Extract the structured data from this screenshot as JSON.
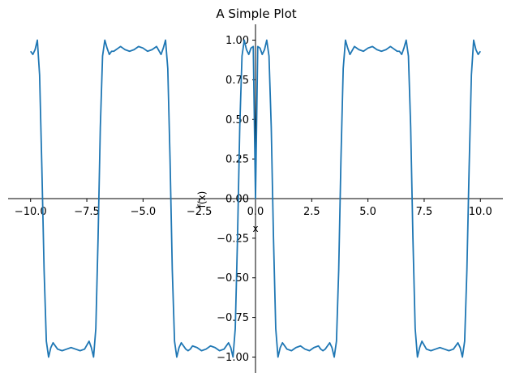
{
  "chart_data": {
    "type": "line",
    "title": "A Simple Plot",
    "xlabel": "x",
    "ylabel": "f(x)",
    "xlim": [
      -11,
      11
    ],
    "ylim": [
      -1.1,
      1.1
    ],
    "grid": false,
    "legend": "none",
    "line_color": "#1f77b4",
    "x_ticks": [
      {
        "value": -10.0,
        "label": "−10.0"
      },
      {
        "value": -7.5,
        "label": "−7.5"
      },
      {
        "value": -5.0,
        "label": "−5.0"
      },
      {
        "value": -2.5,
        "label": "−2.5"
      },
      {
        "value": 0.0,
        "label": "0.0"
      },
      {
        "value": 2.5,
        "label": "2.5"
      },
      {
        "value": 5.0,
        "label": "5.0"
      },
      {
        "value": 7.5,
        "label": "7.5"
      },
      {
        "value": 10.0,
        "label": "10.0"
      }
    ],
    "y_ticks": [
      {
        "value": 1.0,
        "label": "1.00"
      },
      {
        "value": 0.75,
        "label": "0.75"
      },
      {
        "value": 0.5,
        "label": "0.50"
      },
      {
        "value": 0.25,
        "label": "0.25"
      },
      {
        "value": 0.0,
        "label": "0.00"
      },
      {
        "value": -0.25,
        "label": "−0.25"
      },
      {
        "value": -0.5,
        "label": "−0.50"
      },
      {
        "value": -0.75,
        "label": "−0.75"
      },
      {
        "value": -1.0,
        "label": "−1.00"
      }
    ],
    "series": [
      {
        "x": [
          -10.0,
          -9.9,
          -9.8,
          -9.7,
          -9.6,
          -9.5,
          -9.4,
          -9.3,
          -9.2,
          -9.1,
          -9.0,
          -8.8,
          -8.6,
          -8.4,
          -8.2,
          -8.0,
          -7.8,
          -7.6,
          -7.4,
          -7.3,
          -7.2,
          -7.1,
          -7.0,
          -6.9,
          -6.8,
          -6.7,
          -6.6,
          -6.5,
          -6.4,
          -6.3,
          -6.2,
          -6.1,
          -6.0,
          -5.9,
          -5.8,
          -5.6,
          -5.4,
          -5.2,
          -5.0,
          -4.8,
          -4.6,
          -4.4,
          -4.2,
          -4.1,
          -4.0,
          -3.9,
          -3.8,
          -3.7,
          -3.6,
          -3.5,
          -3.4,
          -3.3,
          -3.2,
          -3.1,
          -3.0,
          -2.9,
          -2.8,
          -2.6,
          -2.4,
          -2.2,
          -2.0,
          -1.8,
          -1.6,
          -1.4,
          -1.2,
          -1.1,
          -1.0,
          -0.9,
          -0.8,
          -0.7,
          -0.6,
          -0.5,
          -0.4,
          -0.3,
          -0.2,
          -0.1,
          0.0,
          0.1,
          0.2,
          0.3,
          0.4,
          0.5,
          0.6,
          0.7,
          0.8,
          0.9,
          1.0,
          1.1,
          1.2,
          1.4,
          1.6,
          1.8,
          2.0,
          2.2,
          2.4,
          2.6,
          2.8,
          2.9,
          3.0,
          3.1,
          3.2,
          3.3,
          3.4,
          3.5,
          3.6,
          3.7,
          3.8,
          3.9,
          4.0,
          4.1,
          4.2,
          4.4,
          4.6,
          4.8,
          5.0,
          5.2,
          5.4,
          5.6,
          5.8,
          5.9,
          6.0,
          6.1,
          6.2,
          6.3,
          6.4,
          6.5,
          6.6,
          6.7,
          6.8,
          6.9,
          7.0,
          7.1,
          7.2,
          7.3,
          7.4,
          7.6,
          7.8,
          8.0,
          8.2,
          8.4,
          8.6,
          8.8,
          9.0,
          9.1,
          9.2,
          9.3,
          9.4,
          9.5,
          9.6,
          9.7,
          9.8,
          9.9,
          10.0
        ],
        "y": [
          0.93,
          0.91,
          0.94,
          1.0,
          0.78,
          0.2,
          -0.45,
          -0.9,
          -1.0,
          -0.94,
          -0.91,
          -0.95,
          -0.96,
          -0.95,
          -0.94,
          -0.95,
          -0.96,
          -0.95,
          -0.9,
          -0.94,
          -1.0,
          -0.82,
          -0.25,
          0.45,
          0.9,
          1.0,
          0.95,
          0.91,
          0.93,
          0.93,
          0.94,
          0.95,
          0.96,
          0.95,
          0.94,
          0.93,
          0.94,
          0.96,
          0.95,
          0.93,
          0.94,
          0.96,
          0.91,
          0.95,
          1.0,
          0.82,
          0.25,
          -0.45,
          -0.9,
          -1.0,
          -0.94,
          -0.91,
          -0.93,
          -0.95,
          -0.96,
          -0.95,
          -0.93,
          -0.94,
          -0.96,
          -0.95,
          -0.93,
          -0.94,
          -0.96,
          -0.95,
          -0.91,
          -0.94,
          -1.0,
          -0.82,
          -0.25,
          0.45,
          0.9,
          1.0,
          0.94,
          0.91,
          0.95,
          0.96,
          0.0,
          0.96,
          0.95,
          0.91,
          0.94,
          1.0,
          0.9,
          0.45,
          -0.25,
          -0.82,
          -1.0,
          -0.94,
          -0.91,
          -0.95,
          -0.96,
          -0.94,
          -0.93,
          -0.95,
          -0.96,
          -0.94,
          -0.93,
          -0.95,
          -0.96,
          -0.95,
          -0.93,
          -0.91,
          -0.94,
          -1.0,
          -0.9,
          -0.45,
          0.25,
          0.82,
          1.0,
          0.95,
          0.91,
          0.96,
          0.94,
          0.93,
          0.95,
          0.96,
          0.94,
          0.93,
          0.94,
          0.95,
          0.96,
          0.95,
          0.94,
          0.93,
          0.93,
          0.91,
          0.95,
          1.0,
          0.9,
          0.45,
          -0.25,
          -0.82,
          -1.0,
          -0.94,
          -0.9,
          -0.95,
          -0.96,
          -0.95,
          -0.94,
          -0.95,
          -0.96,
          -0.95,
          -0.91,
          -0.94,
          -1.0,
          -0.9,
          -0.45,
          0.2,
          0.78,
          1.0,
          0.94,
          0.91,
          0.93
        ]
      }
    ]
  }
}
